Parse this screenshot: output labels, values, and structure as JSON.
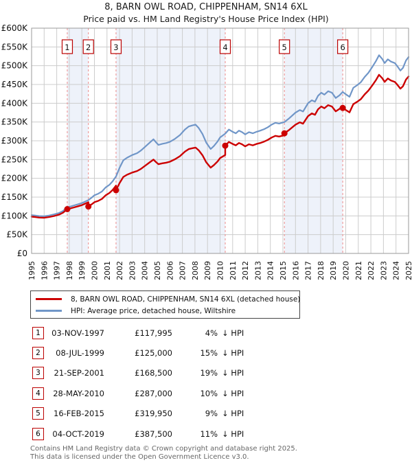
{
  "page": {
    "title_line1": "8, BARN OWL ROAD, CHIPPENHAM, SN14 6XL",
    "title_line2": "Price paid vs. HM Land Registry's House Price Index (HPI)"
  },
  "chart_data": {
    "type": "line",
    "title": "8, BARN OWL ROAD, CHIPPENHAM, SN14 6XL",
    "subtitle": "Price paid vs. HM Land Registry's House Price Index (HPI)",
    "unit": "GBP thousands",
    "xlim": [
      1995,
      2025
    ],
    "ylim": [
      0,
      600
    ],
    "grid": true,
    "legend_position": "below",
    "x_ticks": [
      1995,
      1996,
      1997,
      1998,
      1999,
      2000,
      2001,
      2002,
      2003,
      2004,
      2005,
      2006,
      2007,
      2008,
      2009,
      2010,
      2011,
      2012,
      2013,
      2014,
      2015,
      2016,
      2017,
      2018,
      2019,
      2020,
      2021,
      2022,
      2023,
      2024,
      2025
    ],
    "y_tick_labels": [
      "£0",
      "£50K",
      "£100K",
      "£150K",
      "£200K",
      "£250K",
      "£300K",
      "£350K",
      "£400K",
      "£450K",
      "£500K",
      "£550K",
      "£600K"
    ],
    "series": [
      {
        "name": "8, BARN OWL ROAD, CHIPPENHAM, SN14 6XL (detached house)",
        "color": "#cc0000",
        "points": "derived: price paid at each sale, indexed by HPI between sales (vertical step at each sale)"
      },
      {
        "name": "HPI: Average price, detached house, Wiltshire",
        "color": "#7096c8",
        "points": [
          [
            1995.0,
            102
          ],
          [
            1995.3,
            101
          ],
          [
            1995.6,
            99.5
          ],
          [
            1996.0,
            99
          ],
          [
            1996.4,
            101
          ],
          [
            1996.8,
            104
          ],
          [
            1997.2,
            108
          ],
          [
            1997.5,
            113
          ],
          [
            1997.84,
            123
          ],
          [
            1998.1,
            125
          ],
          [
            1998.4,
            128
          ],
          [
            1998.7,
            131
          ],
          [
            1999.0,
            134
          ],
          [
            1999.25,
            138
          ],
          [
            1999.52,
            142
          ],
          [
            1999.8,
            149
          ],
          [
            2000.0,
            155
          ],
          [
            2000.3,
            159
          ],
          [
            2000.6,
            165
          ],
          [
            2000.9,
            176
          ],
          [
            2001.2,
            183
          ],
          [
            2001.45,
            192
          ],
          [
            2001.72,
            205
          ],
          [
            2002.0,
            228
          ],
          [
            2002.3,
            248
          ],
          [
            2002.6,
            255
          ],
          [
            2003.0,
            262
          ],
          [
            2003.4,
            267
          ],
          [
            2003.7,
            274
          ],
          [
            2004.0,
            283
          ],
          [
            2004.4,
            295
          ],
          [
            2004.7,
            304
          ],
          [
            2004.9,
            296
          ],
          [
            2005.1,
            289
          ],
          [
            2005.4,
            292
          ],
          [
            2005.7,
            294
          ],
          [
            2006.0,
            297
          ],
          [
            2006.4,
            305
          ],
          [
            2006.8,
            315
          ],
          [
            2007.2,
            330
          ],
          [
            2007.5,
            338
          ],
          [
            2007.8,
            341
          ],
          [
            2008.05,
            343
          ],
          [
            2008.3,
            334
          ],
          [
            2008.6,
            318
          ],
          [
            2008.9,
            295
          ],
          [
            2009.25,
            278
          ],
          [
            2009.5,
            286
          ],
          [
            2009.8,
            298
          ],
          [
            2010.0,
            309
          ],
          [
            2010.41,
            319
          ],
          [
            2010.7,
            330
          ],
          [
            2011.0,
            324
          ],
          [
            2011.25,
            320
          ],
          [
            2011.5,
            327
          ],
          [
            2011.75,
            323
          ],
          [
            2012.0,
            317
          ],
          [
            2012.3,
            323
          ],
          [
            2012.6,
            320
          ],
          [
            2012.9,
            324
          ],
          [
            2013.2,
            327
          ],
          [
            2013.5,
            331
          ],
          [
            2013.8,
            336
          ],
          [
            2014.1,
            343
          ],
          [
            2014.4,
            348
          ],
          [
            2014.7,
            346
          ],
          [
            2015.12,
            350
          ],
          [
            2015.5,
            360
          ],
          [
            2016.0,
            375
          ],
          [
            2016.35,
            382
          ],
          [
            2016.6,
            378
          ],
          [
            2017.0,
            400
          ],
          [
            2017.3,
            408
          ],
          [
            2017.55,
            404
          ],
          [
            2017.8,
            420
          ],
          [
            2018.05,
            428
          ],
          [
            2018.3,
            423
          ],
          [
            2018.6,
            432
          ],
          [
            2018.9,
            428
          ],
          [
            2019.2,
            414
          ],
          [
            2019.5,
            421
          ],
          [
            2019.76,
            430
          ],
          [
            2020.0,
            424
          ],
          [
            2020.3,
            417
          ],
          [
            2020.6,
            441
          ],
          [
            2020.9,
            448
          ],
          [
            2021.2,
            456
          ],
          [
            2021.5,
            470
          ],
          [
            2021.8,
            481
          ],
          [
            2022.1,
            496
          ],
          [
            2022.4,
            512
          ],
          [
            2022.65,
            528
          ],
          [
            2022.9,
            518
          ],
          [
            2023.1,
            507
          ],
          [
            2023.35,
            517
          ],
          [
            2023.6,
            511
          ],
          [
            2023.9,
            507
          ],
          [
            2024.1,
            499
          ],
          [
            2024.35,
            487
          ],
          [
            2024.55,
            494
          ],
          [
            2024.8,
            514
          ],
          [
            2025.0,
            523
          ]
        ]
      }
    ],
    "sales": [
      {
        "n": 1,
        "date": "03-NOV-1997",
        "t": 1997.84,
        "price": 117995
      },
      {
        "n": 2,
        "date": "08-JUL-1999",
        "t": 1999.52,
        "price": 125000
      },
      {
        "n": 3,
        "date": "21-SEP-2001",
        "t": 2001.72,
        "price": 168500
      },
      {
        "n": 4,
        "date": "28-MAY-2010",
        "t": 2010.41,
        "price": 287000
      },
      {
        "n": 5,
        "date": "16-FEB-2015",
        "t": 2015.12,
        "price": 319950
      },
      {
        "n": 6,
        "date": "04-OCT-2019",
        "t": 2019.76,
        "price": 387500
      }
    ],
    "bands": {
      "fill": "#eef2fa",
      "ranges": [
        [
          1997.84,
          1999.52
        ],
        [
          2001.72,
          2010.41
        ],
        [
          2015.12,
          2019.76
        ]
      ]
    },
    "colors": {
      "grid": "#cccccc",
      "border": "#999999",
      "sale_line": "#ec8a8a",
      "sale_box_border": "#bb0000",
      "property_line": "#cc0000",
      "hpi_line": "#7096c8"
    }
  },
  "table": {
    "suffix": "↓ HPI",
    "rows": [
      {
        "num": "1",
        "date": "03-NOV-1997",
        "price": "£117,995",
        "pct": "4%"
      },
      {
        "num": "2",
        "date": "08-JUL-1999",
        "price": "£125,000",
        "pct": "15%"
      },
      {
        "num": "3",
        "date": "21-SEP-2001",
        "price": "£168,500",
        "pct": "19%"
      },
      {
        "num": "4",
        "date": "28-MAY-2010",
        "price": "£287,000",
        "pct": "10%"
      },
      {
        "num": "5",
        "date": "16-FEB-2015",
        "price": "£319,950",
        "pct": "9%"
      },
      {
        "num": "6",
        "date": "04-OCT-2019",
        "price": "£387,500",
        "pct": "11%"
      }
    ]
  },
  "footer": {
    "line1": "Contains HM Land Registry data © Crown copyright and database right 2025.",
    "line2": "This data is licensed under the Open Government Licence v3.0."
  }
}
